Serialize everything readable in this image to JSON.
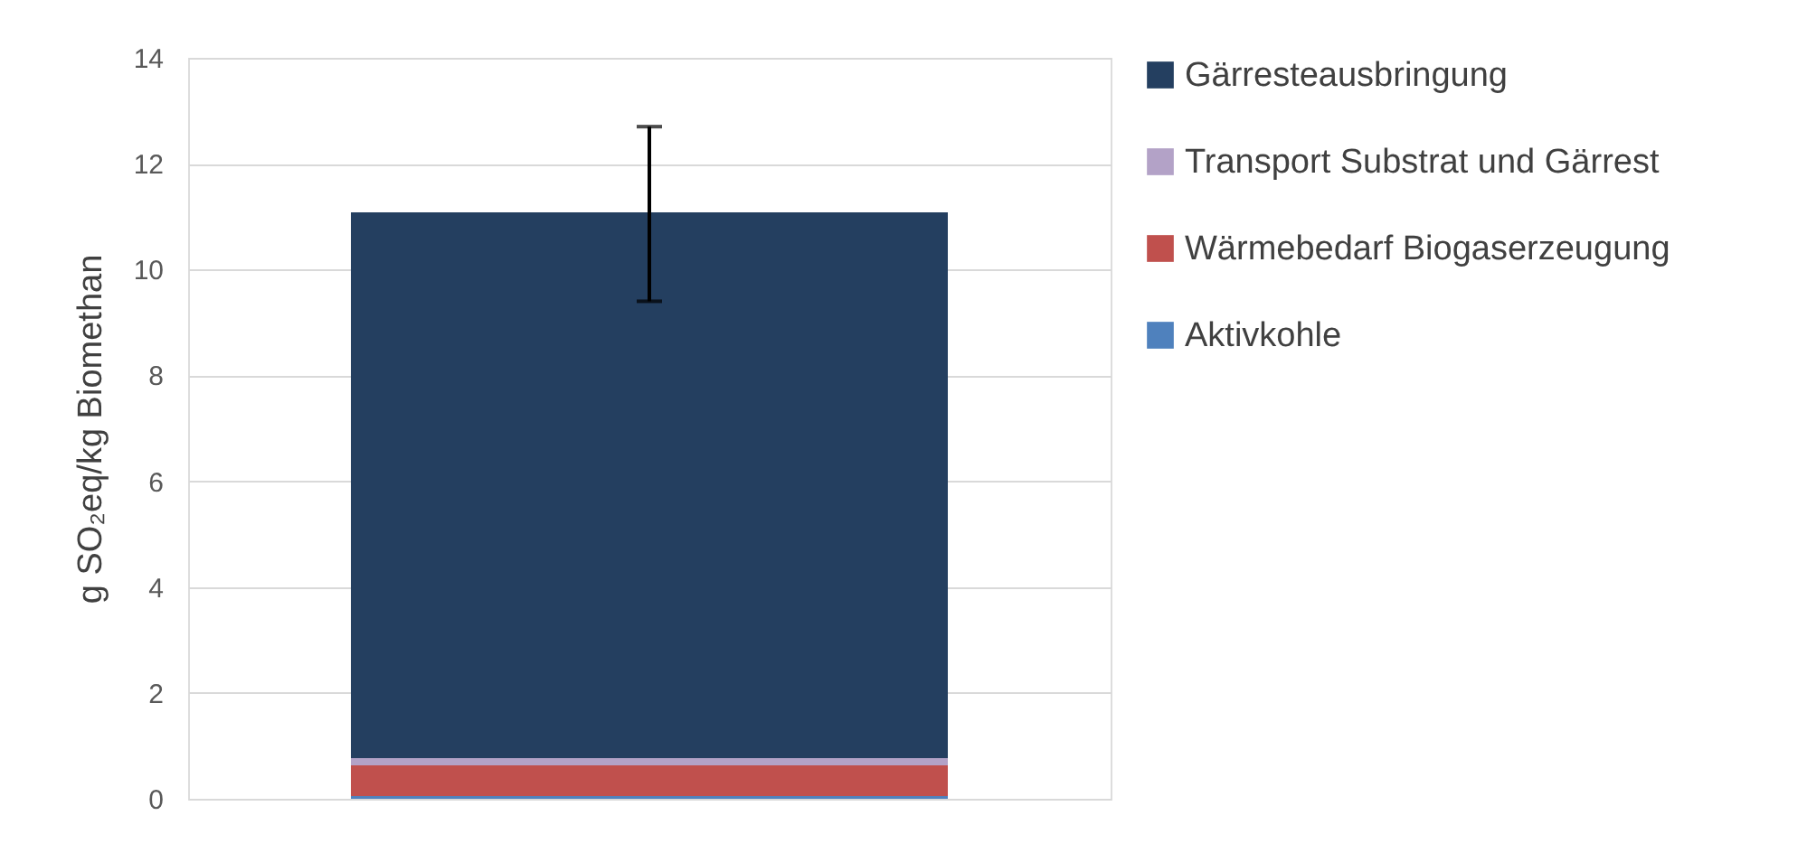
{
  "chart_data": {
    "type": "bar",
    "stacked": true,
    "ylabel": "g SO₂eq/kg Biomethan",
    "categories": [
      null
    ],
    "series": [
      {
        "name": "Aktivkohle",
        "color": "#4f81bd",
        "values": [
          0.05
        ]
      },
      {
        "name": "Wärmebedarf Biogaserzeugung",
        "color": "#c0504d",
        "values": [
          0.58
        ]
      },
      {
        "name": "Transport Substrat und Gärrest",
        "color": "#b3a2c7",
        "values": [
          0.14
        ]
      },
      {
        "name": "Gärresteausbringung",
        "color": "#243f60",
        "values": [
          10.31
        ],
        "errors": [
          [
            9.4,
            12.7
          ]
        ]
      }
    ],
    "ylim": [
      0,
      14
    ],
    "yticks": [
      0,
      2,
      4,
      6,
      8,
      10,
      12,
      14
    ],
    "grid": "y",
    "legend": "right"
  }
}
